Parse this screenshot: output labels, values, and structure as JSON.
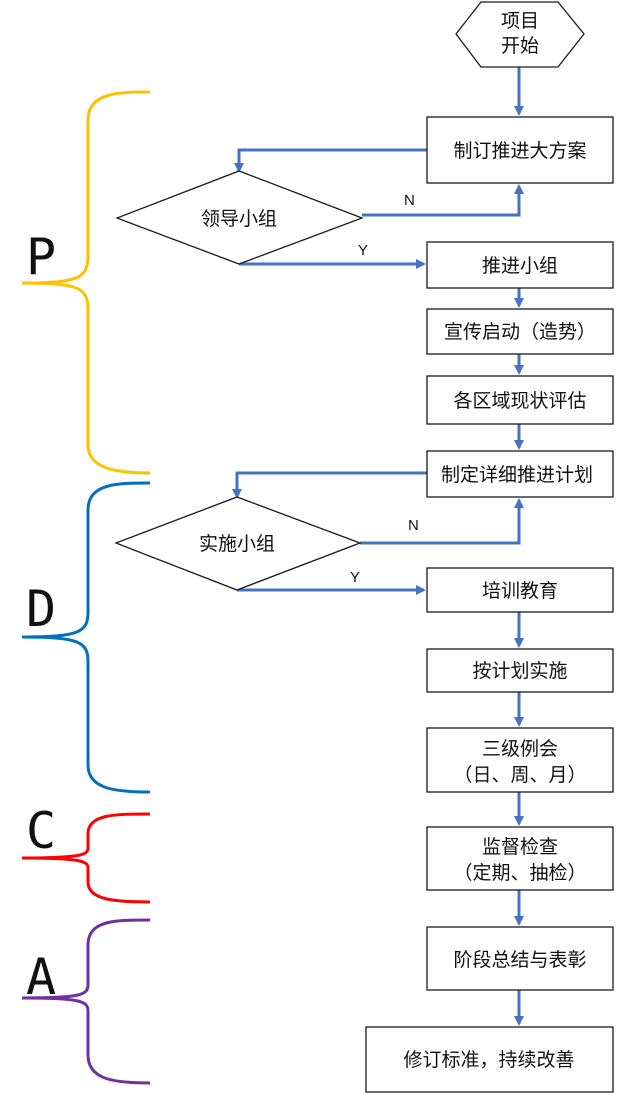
{
  "flow": {
    "start": [
      "项目",
      "开始"
    ],
    "plan": "制订推进大方案",
    "lead_group": "领导小组",
    "push_group": "推进小组",
    "publicity": "宣传启动（造势）",
    "assessment": "各区域现状评估",
    "detailed_plan": "制定详细推进计划",
    "impl_group": "实施小组",
    "training": "培训教育",
    "execute": "按计划实施",
    "meeting": [
      "三级例会",
      "（日、周、月）"
    ],
    "inspection": [
      "监督检查",
      "（定期、抽检）"
    ],
    "summary": "阶段总结与表彰",
    "improve": "修订标准，持续改善",
    "yes": "Y",
    "no": "N"
  },
  "phases": {
    "p": "P",
    "d": "D",
    "c": "C",
    "a": "A"
  },
  "colors": {
    "arrow": "#4472c4",
    "p": "#ffc000",
    "d": "#0070c0",
    "c": "#ff0000",
    "a": "#7030a0"
  }
}
